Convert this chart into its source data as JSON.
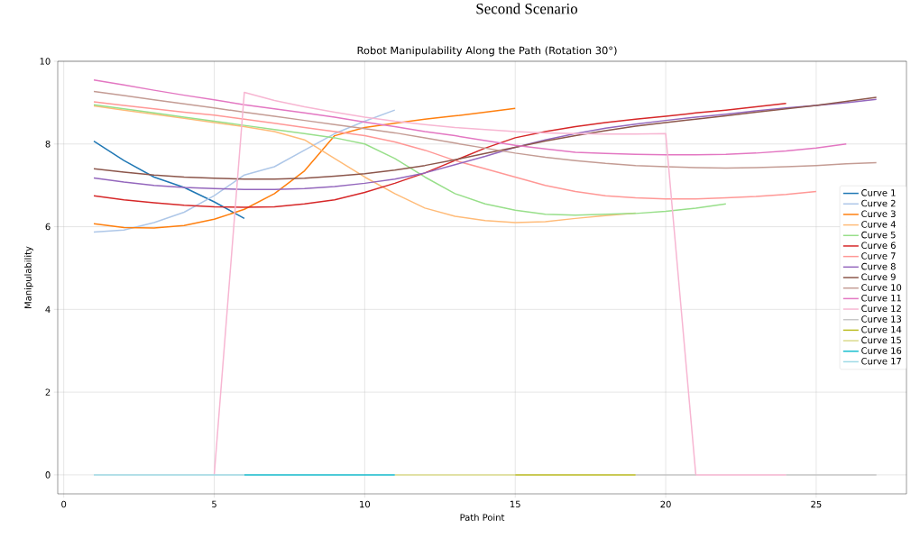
{
  "chart_data": {
    "type": "line",
    "title": "Second Scenario",
    "subtitle": "Robot Manipulability Along the Path (Rotation 30°)",
    "xlabel": "Path Point",
    "ylabel": "Manipulability",
    "xlim": [
      -0.2,
      28
    ],
    "ylim": [
      -0.46,
      10
    ],
    "xticks": [
      0,
      5,
      10,
      15,
      20,
      25
    ],
    "yticks": [
      0,
      2,
      4,
      6,
      8,
      10
    ],
    "grid": true,
    "legend": "right",
    "series": [
      {
        "name": "Curve 1",
        "color": "#1f77b4",
        "x": [
          1,
          2,
          3,
          4,
          5,
          6
        ],
        "values": [
          8.07,
          7.6,
          7.2,
          6.95,
          6.6,
          6.2
        ]
      },
      {
        "name": "Curve 2",
        "color": "#aec7e8",
        "x": [
          1,
          2,
          3,
          4,
          5,
          6,
          7,
          8,
          9,
          10,
          11
        ],
        "values": [
          5.87,
          5.92,
          6.1,
          6.35,
          6.75,
          7.25,
          7.45,
          7.85,
          8.25,
          8.55,
          8.82
        ]
      },
      {
        "name": "Curve 3",
        "color": "#ff7f0e",
        "x": [
          1,
          2,
          3,
          4,
          5,
          6,
          7,
          8,
          9,
          10,
          11,
          12,
          13,
          14,
          15
        ],
        "values": [
          6.07,
          5.98,
          5.97,
          6.03,
          6.18,
          6.42,
          6.8,
          7.35,
          8.2,
          8.4,
          8.5,
          8.6,
          8.68,
          8.77,
          8.86
        ]
      },
      {
        "name": "Curve 4",
        "color": "#ffbb78",
        "x": [
          1,
          2,
          3,
          4,
          5,
          6,
          7,
          8,
          9,
          10,
          11,
          12,
          13,
          14,
          15,
          16,
          17,
          18,
          19
        ],
        "values": [
          8.92,
          8.82,
          8.72,
          8.62,
          8.52,
          8.42,
          8.3,
          8.1,
          7.65,
          7.2,
          6.8,
          6.45,
          6.25,
          6.15,
          6.1,
          6.12,
          6.2,
          6.27,
          6.33
        ]
      },
      {
        "name": "Curve 5",
        "color": "#98df8a",
        "x": [
          1,
          2,
          3,
          4,
          5,
          6,
          7,
          8,
          9,
          10,
          11,
          12,
          13,
          14,
          15,
          16,
          17,
          18,
          19,
          20,
          21,
          22
        ],
        "values": [
          8.95,
          8.85,
          8.75,
          8.65,
          8.55,
          8.45,
          8.35,
          8.25,
          8.15,
          8.0,
          7.65,
          7.2,
          6.8,
          6.55,
          6.4,
          6.3,
          6.28,
          6.3,
          6.32,
          6.37,
          6.45,
          6.55
        ]
      },
      {
        "name": "Curve 6",
        "color": "#d62728",
        "x": [
          1,
          2,
          3,
          4,
          5,
          6,
          7,
          8,
          9,
          10,
          11,
          12,
          13,
          14,
          15,
          16,
          17,
          18,
          19,
          20,
          21,
          22,
          23,
          24
        ],
        "values": [
          6.75,
          6.65,
          6.58,
          6.52,
          6.48,
          6.47,
          6.48,
          6.55,
          6.65,
          6.83,
          7.05,
          7.3,
          7.6,
          7.9,
          8.15,
          8.3,
          8.42,
          8.52,
          8.6,
          8.67,
          8.75,
          8.82,
          8.9,
          8.98
        ]
      },
      {
        "name": "Curve 7",
        "color": "#ff9896",
        "x": [
          1,
          2,
          3,
          4,
          5,
          6,
          7,
          8,
          9,
          10,
          11,
          12,
          13,
          14,
          15,
          16,
          17,
          18,
          19,
          20,
          21,
          22,
          23,
          24,
          25
        ],
        "values": [
          9.02,
          8.93,
          8.85,
          8.77,
          8.7,
          8.6,
          8.5,
          8.4,
          8.3,
          8.2,
          8.05,
          7.85,
          7.6,
          7.4,
          7.2,
          7.0,
          6.85,
          6.75,
          6.7,
          6.67,
          6.67,
          6.7,
          6.73,
          6.78,
          6.85
        ]
      },
      {
        "name": "Curve 8",
        "color": "#9467bd",
        "x": [
          1,
          2,
          3,
          4,
          5,
          6,
          7,
          8,
          9,
          10,
          11,
          12,
          13,
          14,
          15,
          16,
          17,
          18,
          19,
          20,
          21,
          22,
          23,
          24,
          25,
          26,
          27
        ],
        "values": [
          7.18,
          7.08,
          7.0,
          6.95,
          6.92,
          6.9,
          6.9,
          6.92,
          6.97,
          7.05,
          7.15,
          7.3,
          7.5,
          7.7,
          7.92,
          8.1,
          8.25,
          8.38,
          8.48,
          8.57,
          8.65,
          8.72,
          8.8,
          8.87,
          8.93,
          9.0,
          9.08
        ]
      },
      {
        "name": "Curve 9",
        "color": "#8c564b",
        "x": [
          1,
          2,
          3,
          4,
          5,
          6,
          7,
          8,
          9,
          10,
          11,
          12,
          13,
          14,
          15,
          16,
          17,
          18,
          19,
          20,
          21,
          22,
          23,
          24,
          25,
          26,
          27
        ],
        "values": [
          7.4,
          7.32,
          7.25,
          7.2,
          7.17,
          7.15,
          7.15,
          7.17,
          7.22,
          7.28,
          7.37,
          7.48,
          7.62,
          7.77,
          7.92,
          8.07,
          8.2,
          8.32,
          8.43,
          8.52,
          8.6,
          8.68,
          8.77,
          8.85,
          8.93,
          9.03,
          9.13
        ]
      },
      {
        "name": "Curve 10",
        "color": "#c49c94",
        "x": [
          1,
          2,
          3,
          4,
          5,
          6,
          7,
          8,
          9,
          10,
          11,
          12,
          13,
          14,
          15,
          16,
          17,
          18,
          19,
          20,
          21,
          22,
          23,
          24,
          25,
          26,
          27
        ],
        "values": [
          9.27,
          9.17,
          9.07,
          8.97,
          8.87,
          8.77,
          8.67,
          8.57,
          8.47,
          8.37,
          8.27,
          8.15,
          8.02,
          7.9,
          7.78,
          7.68,
          7.6,
          7.53,
          7.48,
          7.45,
          7.43,
          7.42,
          7.43,
          7.45,
          7.48,
          7.52,
          7.55
        ]
      },
      {
        "name": "Curve 11",
        "color": "#e377c2",
        "x": [
          1,
          2,
          3,
          4,
          5,
          6,
          7,
          8,
          9,
          10,
          11,
          12,
          13,
          14,
          15,
          16,
          17,
          18,
          19,
          20,
          21,
          22,
          23,
          24,
          25,
          26
        ],
        "values": [
          9.55,
          9.43,
          9.3,
          9.18,
          9.07,
          8.95,
          8.85,
          8.75,
          8.65,
          8.53,
          8.42,
          8.3,
          8.2,
          8.08,
          7.97,
          7.88,
          7.8,
          7.77,
          7.75,
          7.74,
          7.74,
          7.75,
          7.78,
          7.83,
          7.9,
          8.0
        ]
      },
      {
        "name": "Curve 12",
        "color": "#f7b6d2",
        "x": [
          5,
          6,
          7,
          8,
          9,
          10,
          11,
          12,
          13,
          14,
          15,
          16,
          17,
          18,
          19,
          20,
          21,
          22,
          23,
          24
        ],
        "values": [
          0,
          9.25,
          9.05,
          8.9,
          8.77,
          8.65,
          8.55,
          8.47,
          8.4,
          8.35,
          8.3,
          8.27,
          8.25,
          8.24,
          8.24,
          8.25,
          0,
          0,
          0,
          0
        ]
      },
      {
        "name": "Curve 13",
        "color": "#c7c7c7",
        "x": [
          19,
          21,
          22,
          24,
          27
        ],
        "values": [
          0,
          0,
          null,
          0,
          0
        ]
      },
      {
        "name": "Curve 14",
        "color": "#bcbd22",
        "x": [
          15,
          19
        ],
        "values": [
          0,
          0
        ]
      },
      {
        "name": "Curve 15",
        "color": "#dbdb8d",
        "x": [
          11,
          15
        ],
        "values": [
          0,
          0
        ]
      },
      {
        "name": "Curve 16",
        "color": "#17becf",
        "x": [
          6,
          11
        ],
        "values": [
          0,
          0
        ]
      },
      {
        "name": "Curve 17",
        "color": "#9edae5",
        "x": [
          1,
          6
        ],
        "values": [
          0,
          0
        ]
      }
    ]
  }
}
